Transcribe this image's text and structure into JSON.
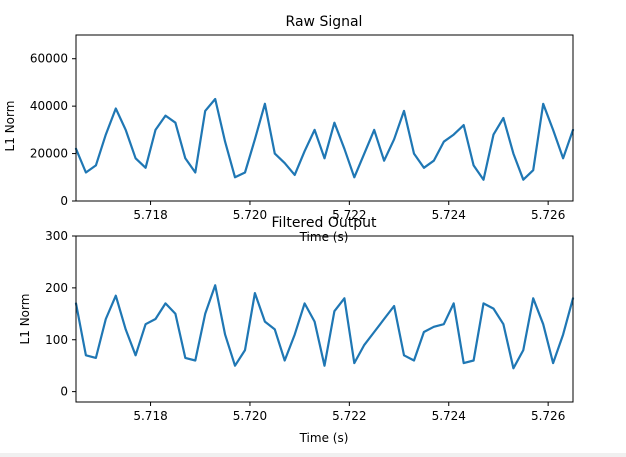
{
  "colors": {
    "line": "#1f77b4",
    "frame": "#000000",
    "background": "#ffffff"
  },
  "chart_data": [
    {
      "type": "line",
      "title": "Raw Signal",
      "xlabel": "Time (s)",
      "ylabel": "L1 Norm",
      "xlim": [
        5.7165,
        5.7265
      ],
      "ylim": [
        0,
        70000
      ],
      "xticks": [
        5.718,
        5.72,
        5.722,
        5.724,
        5.726
      ],
      "xtick_labels": [
        "5.718",
        "5.720",
        "5.722",
        "5.724",
        "5.726"
      ],
      "yticks": [
        0,
        20000,
        40000,
        60000
      ],
      "ytick_labels": [
        "0",
        "20000",
        "40000",
        "60000"
      ],
      "grid": false,
      "series": [
        {
          "x": [
            5.7165,
            5.7167,
            5.7169,
            5.7171,
            5.7173,
            5.7175,
            5.7177,
            5.7179,
            5.7181,
            5.7183,
            5.7185,
            5.7187,
            5.7189,
            5.7191,
            5.7193,
            5.7195,
            5.7197,
            5.7199,
            5.7201,
            5.7203,
            5.7205,
            5.7207,
            5.7209,
            5.7211,
            5.7213,
            5.7215,
            5.7217,
            5.7219,
            5.7221,
            5.7223,
            5.7225,
            5.7227,
            5.7229,
            5.7231,
            5.7233,
            5.7235,
            5.7237,
            5.7239,
            5.7241,
            5.7243,
            5.7245,
            5.7247,
            5.7249,
            5.7251,
            5.7253,
            5.7255,
            5.7257,
            5.7259,
            5.7261,
            5.7263,
            5.7265
          ],
          "values": [
            22000,
            12000,
            15000,
            28000,
            39000,
            30000,
            18000,
            14000,
            30000,
            36000,
            33000,
            18000,
            12000,
            38000,
            43000,
            25000,
            10000,
            12000,
            26000,
            41000,
            20000,
            16000,
            11000,
            21000,
            30000,
            18000,
            33000,
            22000,
            10000,
            20000,
            30000,
            17000,
            26000,
            38000,
            20000,
            14000,
            17000,
            25000,
            28000,
            32000,
            15000,
            9000,
            28000,
            35000,
            20000,
            9000,
            13000,
            41000,
            30000,
            18000,
            30000
          ]
        }
      ]
    },
    {
      "type": "line",
      "title": "Filtered Output",
      "xlabel": "Time (s)",
      "ylabel": "L1 Norm",
      "xlim": [
        5.7165,
        5.7265
      ],
      "ylim": [
        -20,
        300
      ],
      "xticks": [
        5.718,
        5.72,
        5.722,
        5.724,
        5.726
      ],
      "xtick_labels": [
        "5.718",
        "5.720",
        "5.722",
        "5.724",
        "5.726"
      ],
      "yticks": [
        0,
        100,
        200,
        300
      ],
      "ytick_labels": [
        "0",
        "100",
        "200",
        "300"
      ],
      "grid": false,
      "series": [
        {
          "x": [
            5.7165,
            5.7167,
            5.7169,
            5.7171,
            5.7173,
            5.7175,
            5.7177,
            5.7179,
            5.7181,
            5.7183,
            5.7185,
            5.7187,
            5.7189,
            5.7191,
            5.7193,
            5.7195,
            5.7197,
            5.7199,
            5.7201,
            5.7203,
            5.7205,
            5.7207,
            5.7209,
            5.7211,
            5.7213,
            5.7215,
            5.7217,
            5.7219,
            5.7221,
            5.7223,
            5.7225,
            5.7227,
            5.7229,
            5.7231,
            5.7233,
            5.7235,
            5.7237,
            5.7239,
            5.7241,
            5.7243,
            5.7245,
            5.7247,
            5.7249,
            5.7251,
            5.7253,
            5.7255,
            5.7257,
            5.7259,
            5.7261,
            5.7263,
            5.7265
          ],
          "values": [
            170,
            70,
            65,
            140,
            185,
            120,
            70,
            130,
            140,
            170,
            150,
            65,
            60,
            150,
            205,
            110,
            50,
            80,
            190,
            135,
            120,
            60,
            110,
            170,
            135,
            50,
            155,
            180,
            55,
            90,
            115,
            140,
            165,
            70,
            60,
            115,
            125,
            130,
            170,
            55,
            60,
            170,
            160,
            130,
            45,
            80,
            180,
            130,
            55,
            110,
            180
          ]
        }
      ]
    }
  ]
}
